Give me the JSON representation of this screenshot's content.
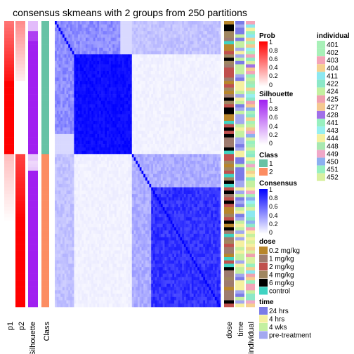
{
  "chart_data": {
    "type": "heatmap",
    "title": "consensus skmeans with 2 groups from 250 partitions",
    "column_labels": [
      "p1",
      "p2",
      "Silhouette",
      "Class"
    ],
    "annotation_labels": [
      "dose",
      "time",
      "individual"
    ],
    "groups": [
      {
        "class": "1",
        "n_samples": 40,
        "p1": 1.0,
        "p2": 0.0
      },
      {
        "class": "2",
        "n_samples": 46,
        "p1": 0.0,
        "p2": 1.0
      }
    ],
    "legends": {
      "prob": {
        "title": "Prob",
        "ticks": [
          "1",
          "0.8",
          "0.6",
          "0.4",
          "0.2",
          "0"
        ]
      },
      "silhouette": {
        "title": "Silhouette",
        "ticks": [
          "1",
          "0.8",
          "0.6",
          "0.4",
          "0.2",
          "0"
        ]
      },
      "class": {
        "title": "Class",
        "items": [
          {
            "label": "1",
            "color": "#66C2A5"
          },
          {
            "label": "2",
            "color": "#FC8D62"
          }
        ]
      },
      "consensus": {
        "title": "Consensus",
        "ticks": [
          "1",
          "0.8",
          "0.6",
          "0.4",
          "0.2",
          "0"
        ]
      },
      "dose": {
        "title": "dose",
        "items": [
          {
            "label": "0.2 mg/kg",
            "color": "#B8862B"
          },
          {
            "label": "1 mg/kg",
            "color": "#9E7B6E"
          },
          {
            "label": "2 mg/kg",
            "color": "#C0504D"
          },
          {
            "label": "4 mg/kg",
            "color": "#A08660"
          },
          {
            "label": "6 mg/kg",
            "color": "#000000"
          },
          {
            "label": "control",
            "color": "#3FD3C2"
          }
        ]
      },
      "time": {
        "title": "time",
        "items": [
          {
            "label": "24 hrs",
            "color": "#7B7BE8"
          },
          {
            "label": "4 hrs",
            "color": "#F5F0A0"
          },
          {
            "label": "4 wks",
            "color": "#C4F0A0"
          },
          {
            "label": "pre-treatment",
            "color": "#A3A8F0"
          }
        ]
      },
      "individual": {
        "title": "individual",
        "items": [
          {
            "label": "401",
            "color": "#A8F0B8"
          },
          {
            "label": "402",
            "color": "#A8F0B8"
          },
          {
            "label": "403",
            "color": "#F4A4B8"
          },
          {
            "label": "404",
            "color": "#F5D090"
          },
          {
            "label": "411",
            "color": "#8CE8F0"
          },
          {
            "label": "422",
            "color": "#8CE8C8"
          },
          {
            "label": "424",
            "color": "#C4F0A0"
          },
          {
            "label": "425",
            "color": "#F0A0B0"
          },
          {
            "label": "427",
            "color": "#F5C890"
          },
          {
            "label": "428",
            "color": "#A070E8"
          },
          {
            "label": "441",
            "color": "#98F0C0"
          },
          {
            "label": "443",
            "color": "#98F0F0"
          },
          {
            "label": "444",
            "color": "#F5F0A0"
          },
          {
            "label": "448",
            "color": "#A8E8B0"
          },
          {
            "label": "449",
            "color": "#F0A8C8"
          },
          {
            "label": "450",
            "color": "#8CB0F0"
          },
          {
            "label": "451",
            "color": "#98F0C0"
          },
          {
            "label": "452",
            "color": "#D8F0A0"
          }
        ]
      }
    }
  }
}
